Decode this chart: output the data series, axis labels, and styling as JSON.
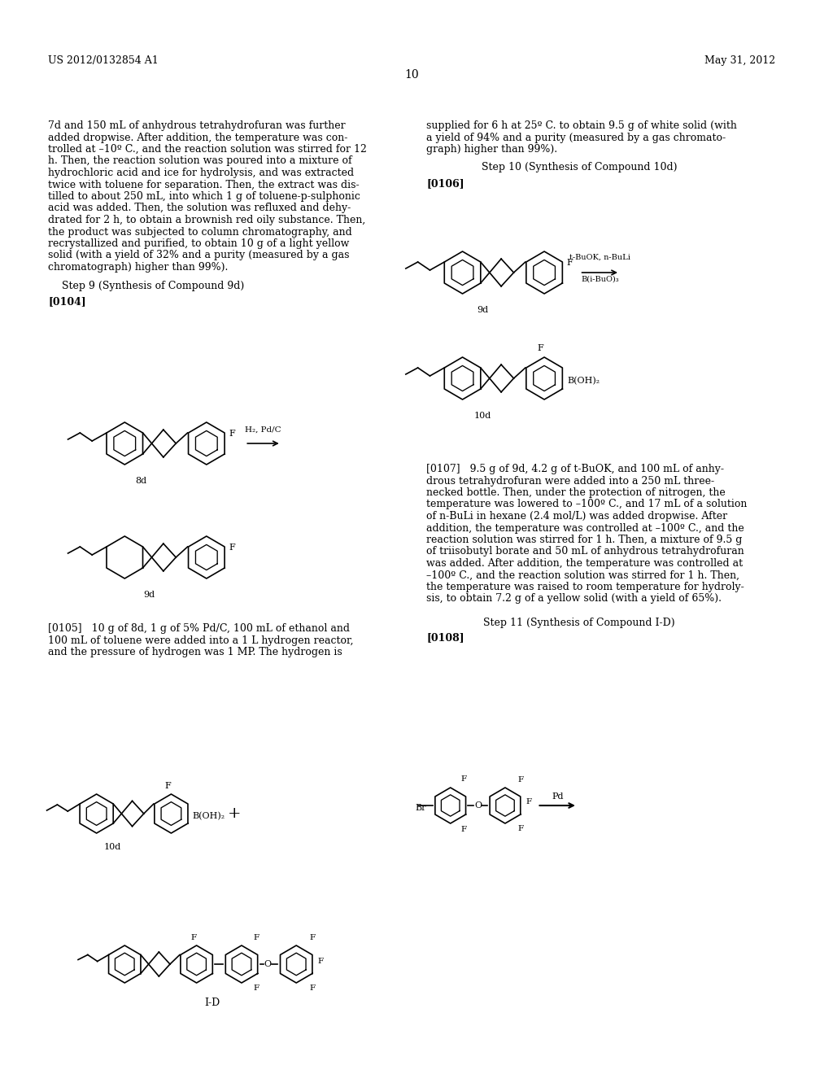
{
  "background_color": "#ffffff",
  "header_left": "US 2012/0132854 A1",
  "header_right": "May 31, 2012",
  "page_number": "10",
  "left_col_text": [
    "7d and 150 mL of anhydrous tetrahydrofuran was further",
    "added dropwise. After addition, the temperature was con-",
    "trolled at –10º C., and the reaction solution was stirred for 12",
    "h. Then, the reaction solution was poured into a mixture of",
    "hydrochloric acid and ice for hydrolysis, and was extracted",
    "twice with toluene for separation. Then, the extract was dis-",
    "tilled to about 250 mL, into which 1 g of toluene-p-sulphonic",
    "acid was added. Then, the solution was refluxed and dehy-",
    "drated for 2 h, to obtain a brownish red oily substance. Then,",
    "the product was subjected to column chromatography, and",
    "recrystallized and purified, to obtain 10 g of a light yellow",
    "solid (with a yield of 32% and a purity (measured by a gas",
    "chromatograph) higher than 99%)."
  ],
  "step9_title": "Step 9 (Synthesis of Compound 9d)",
  "para0104": "[0104]",
  "right_col_text_top": [
    "supplied for 6 h at 25º C. to obtain 9.5 g of white solid (with",
    "a yield of 94% and a purity (measured by a gas chromato-",
    "graph) higher than 99%)."
  ],
  "step10_title": "Step 10 (Synthesis of Compound 10d)",
  "para0106": "[0106]",
  "reagent_10d": "t-BuOK, n-BuLi\nB(i-BuO)₃",
  "label_9d": "9d",
  "label_10d": "10d",
  "para0105_text": "[0105]   10 g of 8d, 1 g of 5% Pd/C, 100 mL of ethanol and\n100 mL of toluene were added into a 1 L hydrogen reactor,\nand the pressure of hydrogen was 1 MP. The hydrogen is",
  "label_8d": "8d",
  "label_9d_bottom": "9d",
  "reagent_step9": "H₂, Pd/C",
  "right_col_text_mid": [
    "[0107]   9.5 g of 9d, 4.2 g of t-BuOK, and 100 mL of anhy-",
    "drous tetrahydrofuran were added into a 250 mL three-",
    "necked bottle. Then, under the protection of nitrogen, the",
    "temperature was lowered to –100º C., and 17 mL of a solution",
    "of n-BuLi in hexane (2.4 mol/L) was added dropwise. After",
    "addition, the temperature was controlled at –100º C., and the",
    "reaction solution was stirred for 1 h. Then, a mixture of 9.5 g",
    "of triisobutyl borate and 50 mL of anhydrous tetrahydrofuran",
    "was added. After addition, the temperature was controlled at",
    "–100º C., and the reaction solution was stirred for 1 h. Then,",
    "the temperature was raised to room temperature for hydroly-",
    "sis, to obtain 7.2 g of a yellow solid (with a yield of 65%)."
  ],
  "step11_title": "Step 11 (Synthesis of Compound I-D)",
  "para0108": "[0108]"
}
